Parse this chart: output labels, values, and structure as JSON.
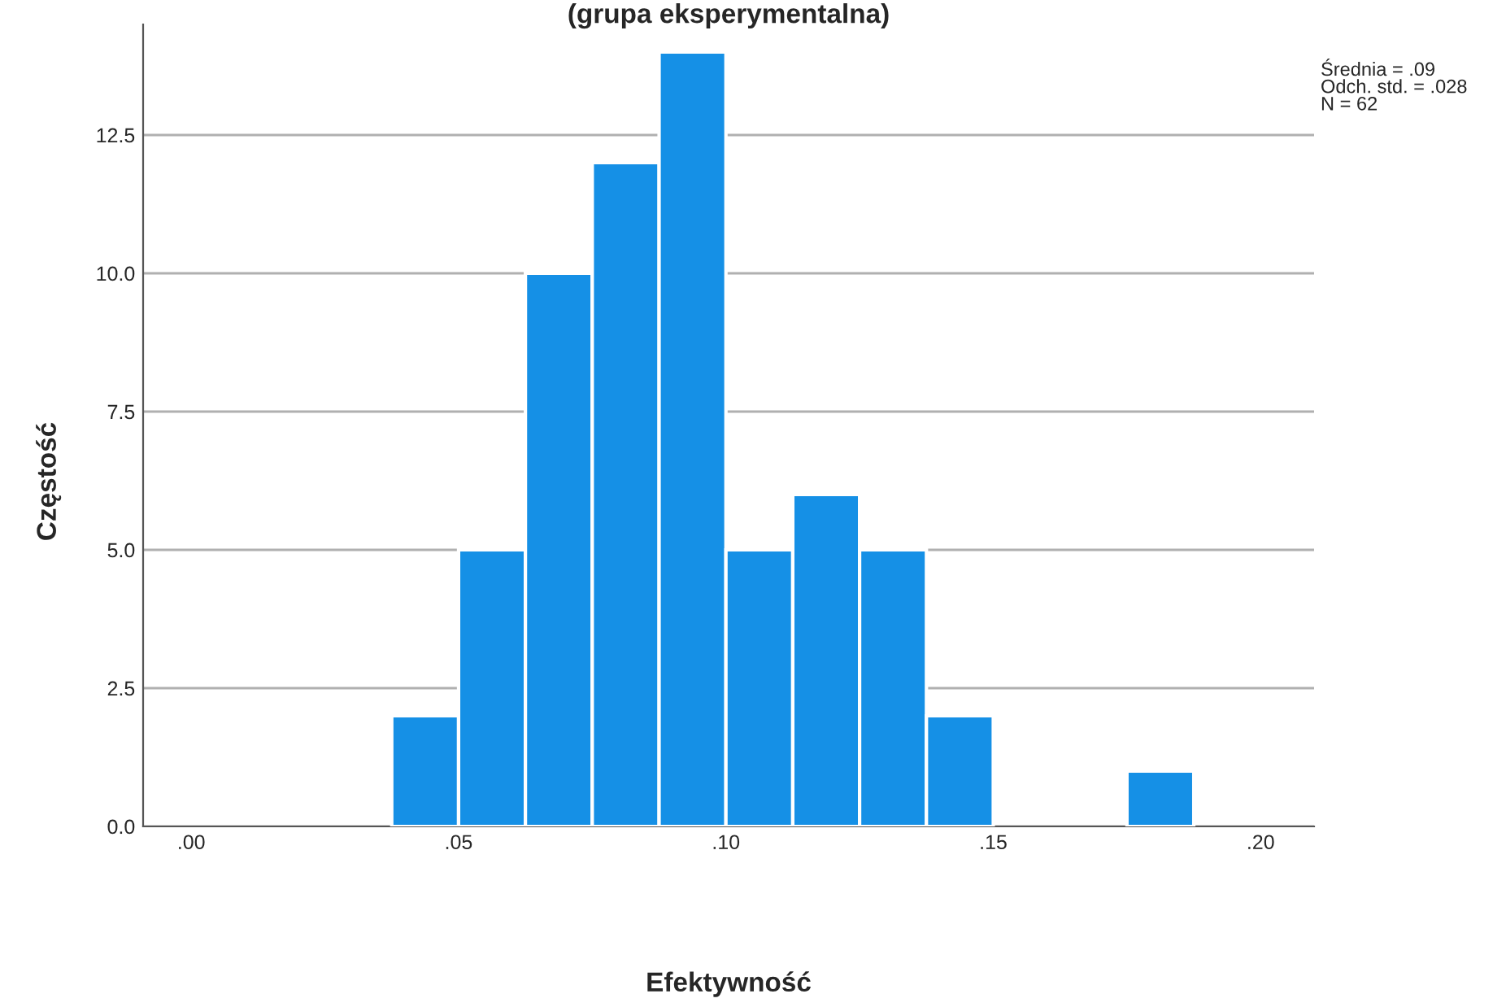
{
  "chart_data": {
    "type": "histogram",
    "title": "(grupa eksperymentalna)",
    "xlabel": "Efektywność",
    "ylabel": "Częstość",
    "bins": [
      0.0375,
      0.05,
      0.0625,
      0.075,
      0.0875,
      0.1,
      0.1125,
      0.125,
      0.1375,
      0.15,
      0.1625,
      0.175,
      0.1875
    ],
    "values": [
      2,
      5,
      10,
      12,
      14,
      5,
      6,
      5,
      2,
      0,
      0,
      1
    ],
    "color": "#1590e6",
    "xlim": [
      -0.009,
      0.21
    ],
    "ylim": [
      0,
      14.5
    ],
    "xticks": [
      {
        "value": 0,
        "label": ".00"
      },
      {
        "value": 0.05,
        "label": ".05"
      },
      {
        "value": 0.1,
        "label": ".10"
      },
      {
        "value": 0.15,
        "label": ".15"
      },
      {
        "value": 0.2,
        "label": ".20"
      }
    ],
    "yticks": [
      {
        "value": 0,
        "label": "0.0"
      },
      {
        "value": 2.5,
        "label": "2.5"
      },
      {
        "value": 5,
        "label": "5.0"
      },
      {
        "value": 7.5,
        "label": "7.5"
      },
      {
        "value": 10,
        "label": "10.0"
      },
      {
        "value": 12.5,
        "label": "12.5"
      }
    ],
    "grid": "y",
    "legend": false,
    "annotations": [
      "Średnia = .09\nOdch. std. = .028\nN = 62"
    ]
  }
}
